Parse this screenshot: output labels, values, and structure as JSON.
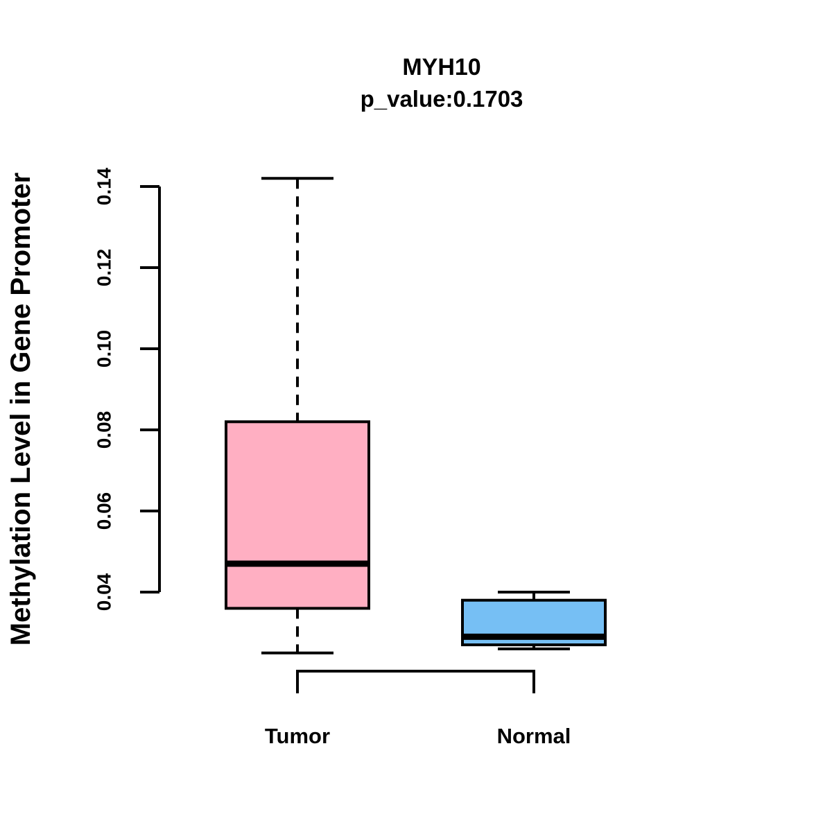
{
  "chart_data": {
    "type": "boxplot",
    "title": "MYH10",
    "subtitle": "p_value:0.1703",
    "ylabel": "Methylation Level in Gene Promoter",
    "xlabel": "",
    "categories": [
      "Tumor",
      "Normal"
    ],
    "series": [
      {
        "name": "Tumor",
        "fill_color": "#FFAFC2",
        "whisker_low": 0.025,
        "q1": 0.036,
        "median": 0.047,
        "q3": 0.082,
        "whisker_high": 0.142
      },
      {
        "name": "Normal",
        "fill_color": "#76BFF4",
        "whisker_low": 0.026,
        "q1": 0.027,
        "median": 0.029,
        "q3": 0.038,
        "whisker_high": 0.04
      }
    ],
    "yticks": [
      "0.04",
      "0.06",
      "0.08",
      "0.10",
      "0.12",
      "0.14"
    ],
    "axis_range": [
      0.04,
      0.14
    ],
    "ylim": [
      0.02,
      0.148
    ],
    "grid": false,
    "legend": false,
    "stroke_color": "#000000",
    "comparison_bracket": {
      "between": [
        "Tumor",
        "Normal"
      ]
    }
  }
}
